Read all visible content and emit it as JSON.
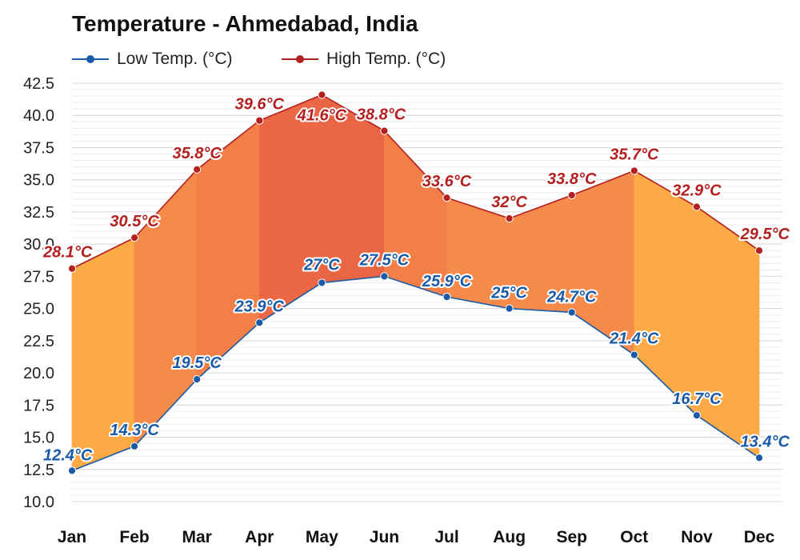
{
  "chart_data": {
    "type": "area",
    "title": "Temperature - Ahmedabad, India",
    "categories": [
      "Jan",
      "Feb",
      "Mar",
      "Apr",
      "May",
      "Jun",
      "Jul",
      "Aug",
      "Sep",
      "Oct",
      "Nov",
      "Dec"
    ],
    "series": [
      {
        "name": "Low Temp. (°C)",
        "color": "#1a5aa6",
        "values": [
          12.4,
          14.3,
          19.5,
          23.9,
          27,
          27.5,
          25.9,
          25,
          24.7,
          21.4,
          16.7,
          13.4
        ],
        "labels": [
          "12.4°C",
          "14.3°C",
          "19.5°C",
          "23.9°C",
          "27°C",
          "27.5°C",
          "25.9°C",
          "25°C",
          "24.7°C",
          "21.4°C",
          "16.7°C",
          "13.4°C"
        ]
      },
      {
        "name": "High Temp. (°C)",
        "color": "#b3201f",
        "values": [
          28.1,
          30.5,
          35.8,
          39.6,
          41.6,
          38.8,
          33.6,
          32,
          33.8,
          35.7,
          32.9,
          29.5
        ],
        "labels": [
          "28.1°C",
          "30.5°C",
          "35.8°C",
          "39.6°C",
          "41.6°C",
          "38.8°C",
          "33.6°C",
          "32°C",
          "33.8°C",
          "35.7°C",
          "32.9°C",
          "29.5°C"
        ]
      }
    ],
    "ylim": [
      10,
      42.5
    ],
    "yticks": [
      "10.0",
      "12.5",
      "15.0",
      "17.5",
      "20.0",
      "22.5",
      "25.0",
      "27.5",
      "30.0",
      "32.5",
      "35.0",
      "37.5",
      "40.0",
      "42.5"
    ],
    "grid": true,
    "legend_position": "top-left",
    "fill_colors": [
      "#fbaa45",
      "#f58a4a",
      "#f27f47",
      "#eb6745",
      "#e96645",
      "#f27f47",
      "#f58a4a",
      "#f58a4a",
      "#f58a4a",
      "#fbaa45",
      "#fbaa45"
    ]
  }
}
